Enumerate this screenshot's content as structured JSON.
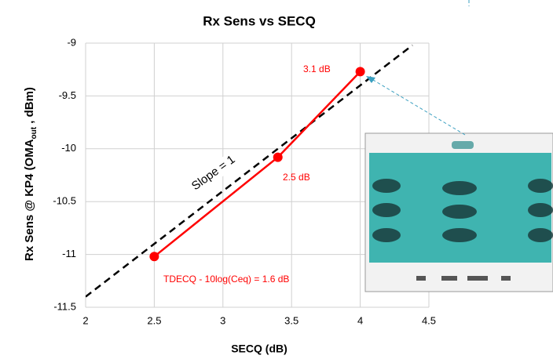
{
  "chart_data": {
    "type": "line",
    "title": "Rx Sens vs SECQ",
    "x_label": "SECQ (dB)",
    "y_label": [
      "Rx Sens @ KP4 (OMA",
      "out",
      " , dBm)"
    ],
    "series": [
      {
        "color": "#ff0000",
        "dashed": false,
        "markers": true,
        "x": [
          2.5,
          3.4,
          4.0
        ],
        "values": [
          -11.02,
          -10.08,
          -9.27
        ]
      },
      {
        "color": "#000000",
        "dashed": true,
        "markers": false,
        "x": [
          2,
          4.38
        ],
        "values": [
          -11.4,
          -9.02
        ]
      }
    ],
    "annotations": [
      "3.1 dB",
      "2.5 dB",
      "TDECQ - 10log(Ceq) = 1.6 dB",
      "Slope = 1"
    ],
    "xlim": [
      2,
      4.5
    ],
    "ylim": [
      -11.5,
      -9
    ],
    "xticks": [
      2,
      2.5,
      3,
      3.5,
      4,
      4.5
    ],
    "yticks": [
      -9,
      -9.5,
      -10,
      -10.5,
      -11,
      -11.5
    ],
    "grid": true
  }
}
